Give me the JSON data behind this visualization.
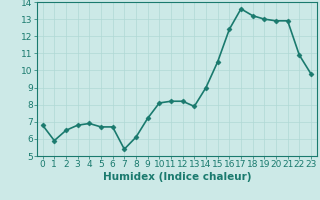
{
  "xlabel": "Humidex (Indice chaleur)",
  "ylabel": "",
  "x_values": [
    0,
    1,
    2,
    3,
    4,
    5,
    6,
    7,
    8,
    9,
    10,
    11,
    12,
    13,
    14,
    15,
    16,
    17,
    18,
    19,
    20,
    21,
    22,
    23
  ],
  "y_values": [
    6.8,
    5.9,
    6.5,
    6.8,
    6.9,
    6.7,
    6.7,
    5.4,
    6.1,
    7.2,
    8.1,
    8.2,
    8.2,
    7.9,
    9.0,
    10.5,
    12.4,
    13.6,
    13.2,
    13.0,
    12.9,
    12.9,
    10.9,
    9.8
  ],
  "line_color": "#1a7a6e",
  "marker": "D",
  "marker_size": 2.5,
  "bg_color": "#cce9e7",
  "grid_color": "#b0d8d5",
  "tick_color": "#1a7a6e",
  "label_color": "#1a7a6e",
  "ylim": [
    5,
    14
  ],
  "xlim": [
    -0.5,
    23.5
  ],
  "yticks": [
    5,
    6,
    7,
    8,
    9,
    10,
    11,
    12,
    13,
    14
  ],
  "xticks": [
    0,
    1,
    2,
    3,
    4,
    5,
    6,
    7,
    8,
    9,
    10,
    11,
    12,
    13,
    14,
    15,
    16,
    17,
    18,
    19,
    20,
    21,
    22,
    23
  ],
  "linewidth": 1.2,
  "font_size": 6.5,
  "xlabel_fontsize": 7.5
}
